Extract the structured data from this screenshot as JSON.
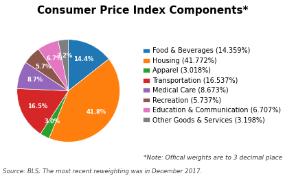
{
  "chart_data": {
    "type": "pie",
    "title": "Consumer Price Index Components*",
    "categories": [
      "Food & Beverages (14.359%)",
      "Housing (41.772%)",
      "Apparel (3.018%)",
      "Transportation (16.537%)",
      "Medical Care (8.673%)",
      "Recreation (5.737%)",
      "Education & Communication (6.707%)",
      "Other Goods & Services (3.198%)"
    ],
    "values": [
      14.359,
      41.772,
      3.018,
      16.537,
      8.673,
      5.737,
      6.707,
      3.198
    ],
    "value_labels": [
      "14.4%",
      "41.8%",
      "3.0%",
      "16.5%",
      "8.7%",
      "5.7%",
      "6.7%",
      "3.2%"
    ],
    "data_labels": true,
    "legend": "center left",
    "note": "*Note: Offical weights are to 3 decimal place",
    "source": "Source: BLS; The most recent reweighting was in December 2017."
  }
}
